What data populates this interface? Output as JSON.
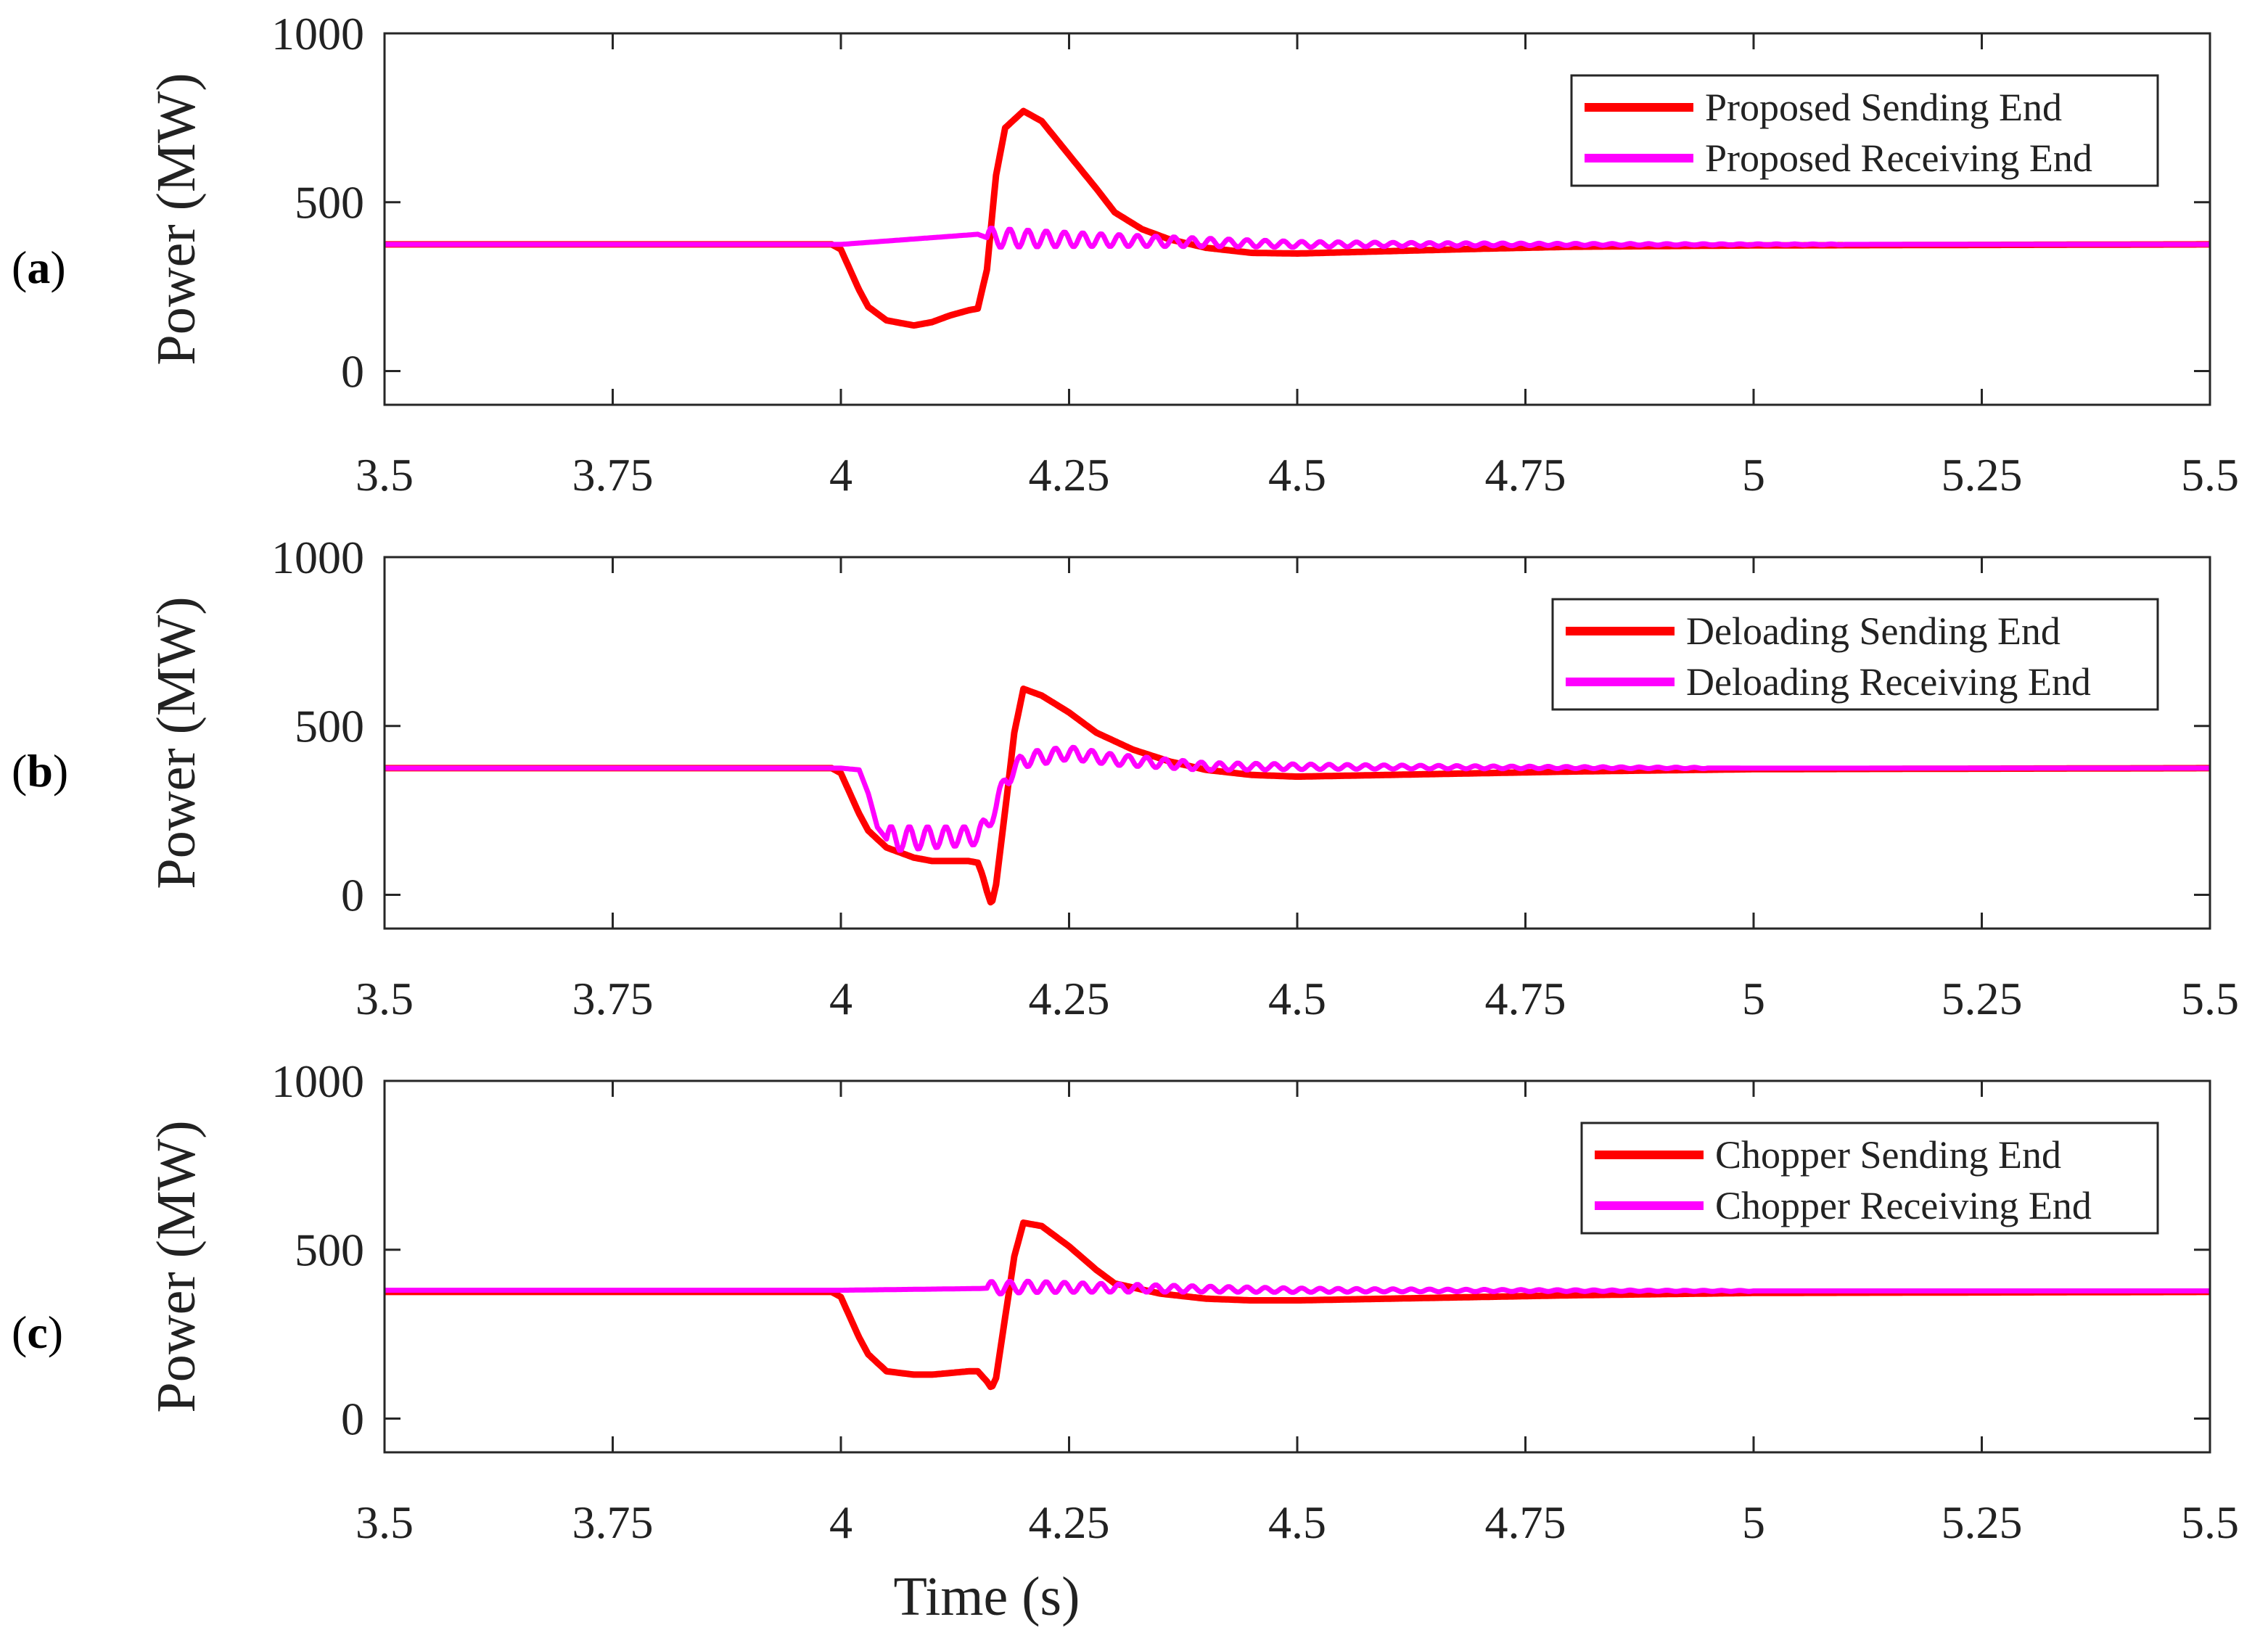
{
  "figure": {
    "x_title": "Time (s)",
    "series_colors": {
      "sending": "#ff0000",
      "receiving": "#ff00ff"
    }
  },
  "chart_data": [
    {
      "type": "line",
      "panel_label": {
        "open": "(",
        "letter": "a",
        "close": ")"
      },
      "xlabel": "Time (s)",
      "ylabel": "Power (MW)",
      "xlim": [
        3.5,
        5.5
      ],
      "ylim": [
        -100,
        1000
      ],
      "x_ticks": [
        "3.5",
        "3.75",
        "4",
        "4.25",
        "4.5",
        "4.75",
        "5",
        "5.25",
        "5.5"
      ],
      "y_ticks": [
        "0",
        "500",
        "1000"
      ],
      "x_tick_values": [
        3.5,
        3.75,
        4,
        4.25,
        4.5,
        4.75,
        5,
        5.25,
        5.5
      ],
      "y_tick_values": [
        0,
        500,
        1000
      ],
      "grid": false,
      "legend_position": "top-right",
      "series": [
        {
          "name": "Proposed Sending End",
          "color": "#ff0000",
          "x": [
            3.5,
            3.99,
            4.0,
            4.01,
            4.02,
            4.03,
            4.05,
            4.08,
            4.1,
            4.12,
            4.14,
            4.15,
            4.16,
            4.17,
            4.18,
            4.2,
            4.22,
            4.25,
            4.28,
            4.3,
            4.33,
            4.36,
            4.4,
            4.45,
            4.5,
            4.6,
            4.7,
            4.8,
            5.0,
            5.5
          ],
          "y": [
            375,
            375,
            360,
            300,
            240,
            190,
            150,
            135,
            145,
            165,
            180,
            185,
            300,
            580,
            720,
            770,
            740,
            640,
            540,
            470,
            420,
            390,
            365,
            350,
            348,
            355,
            362,
            368,
            372,
            375
          ]
        },
        {
          "name": "Proposed Receiving End",
          "color": "#ff00ff",
          "x": [
            3.5,
            4.0,
            4.1,
            4.15,
            4.16,
            4.5,
            5.0,
            5.5
          ],
          "y": [
            375,
            375,
            395,
            405,
            395,
            375,
            375,
            375
          ],
          "oscillation": {
            "start": 4.16,
            "end": 5.1,
            "period": 0.02,
            "amplitude": 30,
            "decay": 0.28
          }
        }
      ]
    },
    {
      "type": "line",
      "panel_label": {
        "open": "(",
        "letter": "b",
        "close": ")"
      },
      "xlabel": "Time (s)",
      "ylabel": "Power (MW)",
      "xlim": [
        3.5,
        5.5
      ],
      "ylim": [
        -100,
        1000
      ],
      "x_ticks": [
        "3.5",
        "3.75",
        "4",
        "4.25",
        "4.5",
        "4.75",
        "5",
        "5.25",
        "5.5"
      ],
      "y_ticks": [
        "0",
        "500",
        "1000"
      ],
      "x_tick_values": [
        3.5,
        3.75,
        4,
        4.25,
        4.5,
        4.75,
        5,
        5.25,
        5.5
      ],
      "y_tick_values": [
        0,
        500,
        1000
      ],
      "grid": false,
      "legend_position": "top-right",
      "series": [
        {
          "name": "Deloading Sending End",
          "color": "#ff0000",
          "x": [
            3.5,
            3.99,
            4.0,
            4.01,
            4.02,
            4.03,
            4.05,
            4.08,
            4.1,
            4.14,
            4.15,
            4.155,
            4.16,
            4.165,
            4.17,
            4.18,
            4.19,
            4.2,
            4.22,
            4.25,
            4.28,
            4.32,
            4.36,
            4.4,
            4.45,
            4.5,
            4.6,
            4.8,
            5.0,
            5.5
          ],
          "y": [
            375,
            375,
            360,
            300,
            240,
            190,
            140,
            110,
            100,
            100,
            95,
            60,
            10,
            -30,
            30,
            250,
            480,
            610,
            590,
            540,
            480,
            430,
            395,
            370,
            355,
            350,
            355,
            365,
            372,
            375
          ]
        },
        {
          "name": "Deloading Receiving End",
          "color": "#ff00ff",
          "x": [
            3.5,
            4.0,
            4.02,
            4.03,
            4.04,
            4.05,
            4.15,
            4.16,
            4.17,
            4.18,
            4.2,
            4.25,
            4.3,
            4.4,
            5.0,
            5.5
          ],
          "y": [
            375,
            375,
            370,
            300,
            200,
            165,
            175,
            210,
            260,
            340,
            400,
            420,
            400,
            380,
            375,
            375
          ],
          "oscillation": {
            "start": 4.05,
            "end": 4.95,
            "period": 0.02,
            "amplitude": 38,
            "decay": 0.3
          }
        }
      ]
    },
    {
      "type": "line",
      "panel_label": {
        "open": "(",
        "letter": "c",
        "close": ")"
      },
      "xlabel": "Time (s)",
      "ylabel": "Power (MW)",
      "xlim": [
        3.5,
        5.5
      ],
      "ylim": [
        -100,
        1000
      ],
      "x_ticks": [
        "3.5",
        "3.75",
        "4",
        "4.25",
        "4.5",
        "4.75",
        "5",
        "5.25",
        "5.5"
      ],
      "y_ticks": [
        "0",
        "500",
        "1000"
      ],
      "x_tick_values": [
        3.5,
        3.75,
        4,
        4.25,
        4.5,
        4.75,
        5,
        5.25,
        5.5
      ],
      "y_tick_values": [
        0,
        500,
        1000
      ],
      "grid": false,
      "legend_position": "top-right",
      "series": [
        {
          "name": "Chopper Sending End",
          "color": "#ff0000",
          "x": [
            3.5,
            3.99,
            4.0,
            4.01,
            4.02,
            4.03,
            4.05,
            4.08,
            4.1,
            4.14,
            4.15,
            4.16,
            4.165,
            4.17,
            4.18,
            4.19,
            4.2,
            4.22,
            4.25,
            4.28,
            4.3,
            4.35,
            4.4,
            4.45,
            4.5,
            4.6,
            4.8,
            5.0,
            5.5
          ],
          "y": [
            375,
            375,
            360,
            300,
            240,
            190,
            140,
            130,
            130,
            140,
            140,
            110,
            90,
            120,
            300,
            480,
            580,
            570,
            510,
            440,
            400,
            370,
            355,
            350,
            350,
            355,
            365,
            372,
            375
          ]
        },
        {
          "name": "Chopper Receiving End",
          "color": "#ff00ff",
          "x": [
            3.5,
            4.0,
            4.15,
            4.2,
            4.5,
            5.0,
            5.5
          ],
          "y": [
            380,
            380,
            385,
            390,
            380,
            378,
            378
          ],
          "oscillation": {
            "start": 4.16,
            "end": 5.0,
            "period": 0.02,
            "amplitude": 20,
            "decay": 0.3
          }
        }
      ]
    }
  ]
}
